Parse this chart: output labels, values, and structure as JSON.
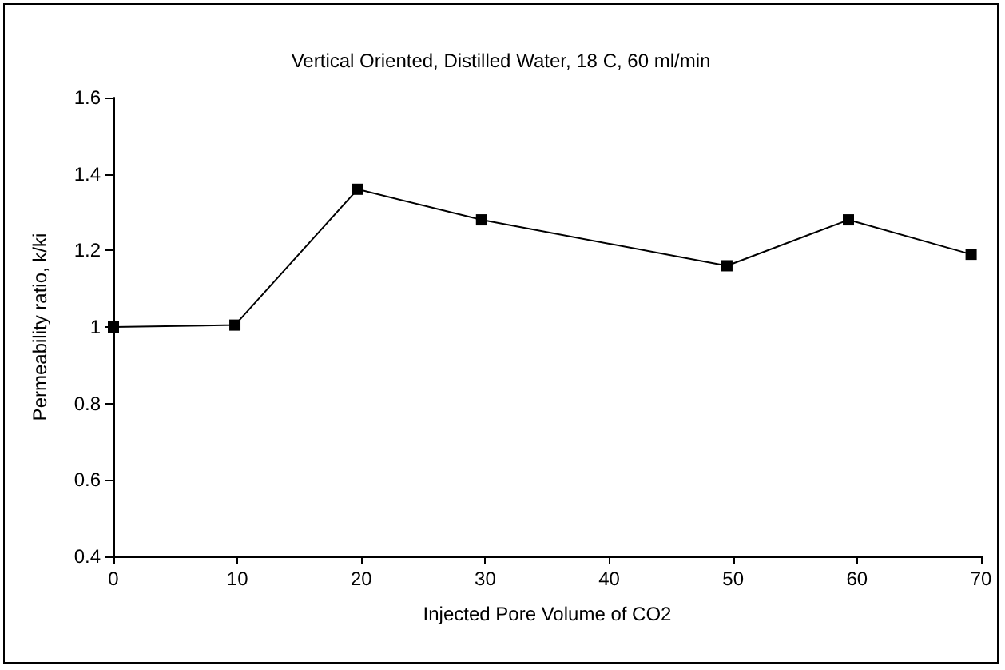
{
  "chart_data": {
    "type": "line",
    "title": "Vertical Oriented, Distilled Water, 18 C, 60 ml/min",
    "xlabel": "Injected Pore Volume of CO2",
    "ylabel": "Permeability ratio, k/ki",
    "x": [
      0,
      9.8,
      19.7,
      29.7,
      49.5,
      59.3,
      69.2
    ],
    "series": [
      {
        "color": "#000000",
        "values": [
          1.0,
          1.005,
          1.36,
          1.28,
          1.16,
          1.28,
          1.19
        ]
      }
    ],
    "xlim": [
      0,
      70
    ],
    "xticks": [
      0,
      10,
      20,
      30,
      40,
      50,
      60,
      70
    ],
    "ylim": [
      0.4,
      1.6
    ],
    "yticks": [
      0.4,
      0.6,
      0.8,
      1,
      1.2,
      1.4,
      1.6
    ],
    "grid": false,
    "marker": "square",
    "line_style": "solid"
  }
}
